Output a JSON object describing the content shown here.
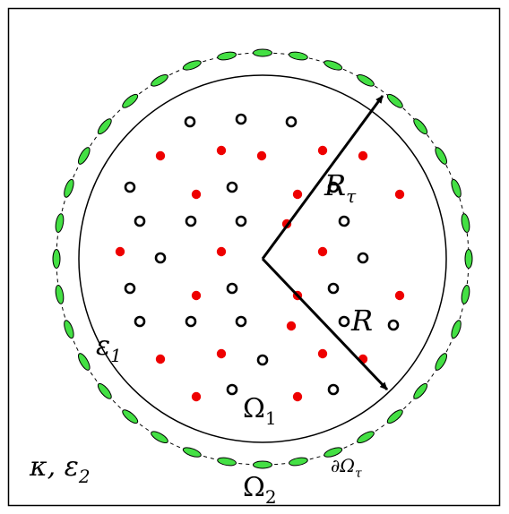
{
  "labels": {
    "omega1": "Ω",
    "omega1_sub": "1",
    "omega2": "Ω",
    "omega2_sub": "2",
    "eps1": "ε",
    "eps1_sub": "1",
    "kappa_eps2": "κ, ε",
    "kappa_eps2_sub": "2",
    "R": "R",
    "R_tau": "R",
    "R_tau_sub": "τ",
    "boundary": "∂Ω",
    "boundary_sub": "τ"
  },
  "colors": {
    "frame": "#000000",
    "red_dot": "#ee0000",
    "ring": "#000000",
    "ellipse_fill": "#44e044",
    "ellipse_stroke": "#000000",
    "arrow": "#000000"
  }
}
